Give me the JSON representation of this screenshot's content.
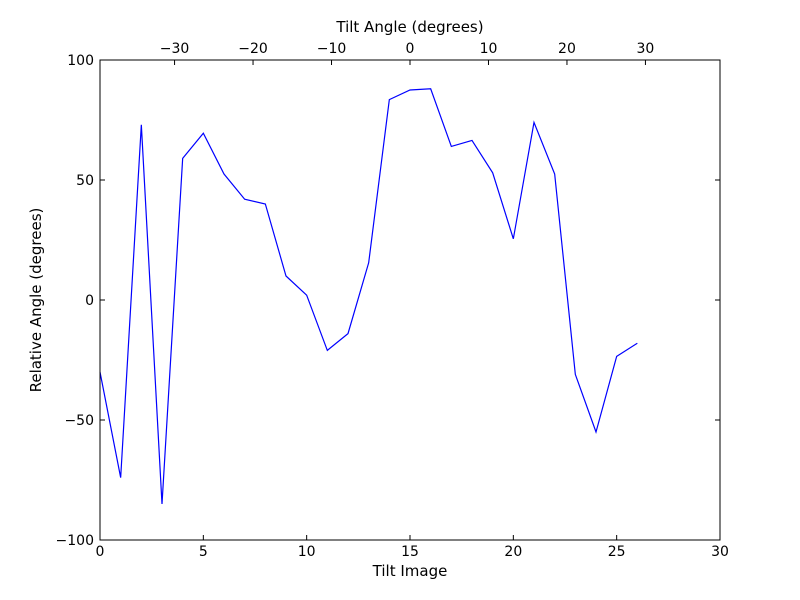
{
  "chart_data": {
    "type": "line",
    "xlabel": "Tilt Image",
    "ylabel": "Relative Angle (degrees)",
    "x2label": "Tilt Angle (degrees)",
    "xlim": [
      0,
      30
    ],
    "ylim": [
      -100,
      100
    ],
    "x2lim": [
      -39.5,
      39.5
    ],
    "x_ticks": [
      0,
      5,
      10,
      15,
      20,
      25,
      30
    ],
    "y_ticks": [
      -100,
      -50,
      0,
      50,
      100
    ],
    "x2_ticks": [
      -30,
      -20,
      -10,
      0,
      10,
      20,
      30
    ],
    "x2_tick_labels": [
      "−30",
      "−20",
      "−10",
      "0",
      "10",
      "20",
      "30"
    ],
    "y_tick_labels": [
      "−100",
      "−50",
      "0",
      "50",
      "100"
    ],
    "grid": false,
    "line_color": "#0000ff",
    "series": [
      {
        "x": [
          0,
          1,
          2,
          3,
          4,
          5,
          6,
          7,
          8,
          9,
          10,
          11,
          12,
          13,
          14,
          15,
          16,
          17,
          18,
          19,
          20,
          21,
          22,
          23,
          24,
          25,
          26
        ],
        "y": [
          -30,
          -74,
          73,
          -85,
          59,
          69.5,
          52.5,
          42,
          40,
          10,
          2,
          -21,
          -14,
          15.5,
          83.5,
          87.5,
          88,
          64,
          66.5,
          53,
          25.5,
          74,
          52.5,
          -31,
          -55,
          -23.5,
          -18
        ]
      }
    ]
  }
}
